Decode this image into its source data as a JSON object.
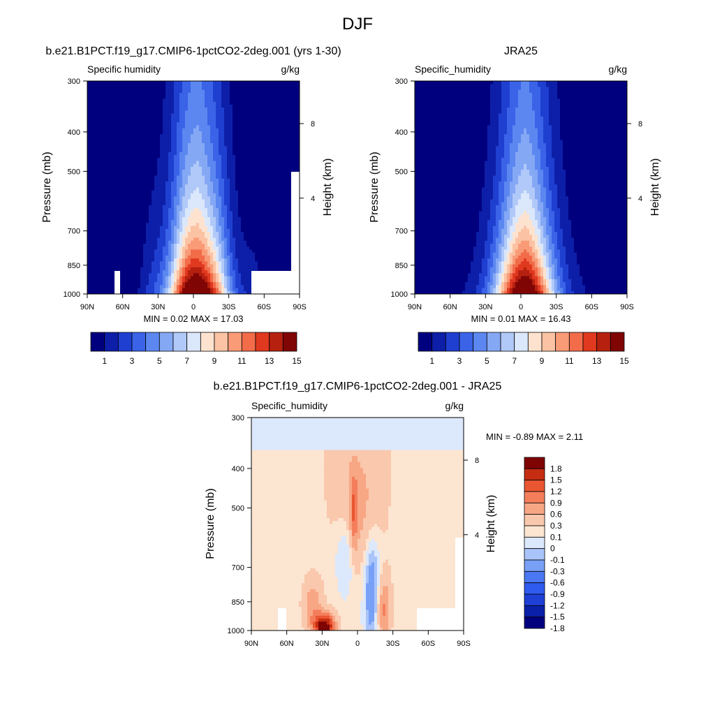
{
  "figure": {
    "title": "DJF"
  },
  "chart_data": [
    {
      "type": "heatmap",
      "title": "b.e21.B1PCT.f19_g17.CMIP6-1pctCO2-2deg.001 (yrs 1-30)",
      "variable": "Specific humidity",
      "units": "g/kg",
      "xlabel": "",
      "ylabel": "Pressure (mb)",
      "y2label": "Height (km)",
      "x_ticks": [
        "90N",
        "60N",
        "30N",
        "0",
        "30S",
        "60S",
        "90S"
      ],
      "y_ticks": [
        "300",
        "400",
        "500",
        "700",
        "850",
        "1000"
      ],
      "y2_ticks": [
        "8",
        "4"
      ],
      "stats": "MIN =  0.02  MAX =  17.03",
      "min": 0.02,
      "max": 17.03,
      "peak_lat": -3,
      "peak_value": 17.03,
      "colorbar_labels": [
        "1",
        "3",
        "5",
        "7",
        "9",
        "11",
        "13",
        "15"
      ]
    },
    {
      "type": "heatmap",
      "title": "JRA25",
      "variable": "Specific_humidity",
      "units": "g/kg",
      "xlabel": "",
      "ylabel": "Pressure (mb)",
      "y2label": "Height (km)",
      "x_ticks": [
        "90N",
        "60N",
        "30N",
        "0",
        "30S",
        "60S",
        "90S"
      ],
      "y_ticks": [
        "300",
        "400",
        "500",
        "700",
        "850",
        "1000"
      ],
      "y2_ticks": [
        "8",
        "4"
      ],
      "stats": "MIN =  0.01  MAX =  16.43",
      "min": 0.01,
      "max": 16.43,
      "peak_lat": -3,
      "peak_value": 16.43,
      "colorbar_labels": [
        "1",
        "3",
        "5",
        "7",
        "9",
        "11",
        "13",
        "15"
      ]
    },
    {
      "type": "heatmap",
      "title": "b.e21.B1PCT.f19_g17.CMIP6-1pctCO2-2deg.001 - JRA25",
      "variable": "Specific_humidity",
      "units": "g/kg",
      "xlabel": "",
      "ylabel": "Pressure (mb)",
      "y2label": "Height (km)",
      "x_ticks": [
        "90N",
        "60N",
        "30N",
        "0",
        "30S",
        "60S",
        "90S"
      ],
      "y_ticks": [
        "300",
        "400",
        "500",
        "700",
        "850",
        "1000"
      ],
      "y2_ticks": [
        "8",
        "4"
      ],
      "stats": "MIN = -0.89  MAX =  2.11",
      "min": -0.89,
      "max": 2.11,
      "colorbar_labels": [
        "1.8",
        "1.5",
        "1.2",
        "0.9",
        "0.6",
        "0.3",
        "0.1",
        "0",
        "-0.1",
        "-0.3",
        "-0.6",
        "-0.9",
        "-1.2",
        "-1.5",
        "-1.8"
      ]
    }
  ],
  "colors": {
    "humidity_scale": [
      "#00007f",
      "#0d1fa8",
      "#1f3fd0",
      "#3a63e8",
      "#5c87f0",
      "#85a8f5",
      "#b1c9f8",
      "#dbe7fb",
      "#fde3cf",
      "#fbc2a3",
      "#f99b77",
      "#f26c4a",
      "#e0391f",
      "#b5200f",
      "#800505"
    ],
    "diff_scale": [
      "#00007f",
      "#0a20a8",
      "#1f40d6",
      "#2f5bef",
      "#4a78f3",
      "#77a0f6",
      "#a9c4f9",
      "#dce8fc",
      "#fce5d1",
      "#fac8ad",
      "#f8a785",
      "#f47e5c",
      "#ea5632",
      "#c52d12",
      "#7f0404"
    ]
  }
}
